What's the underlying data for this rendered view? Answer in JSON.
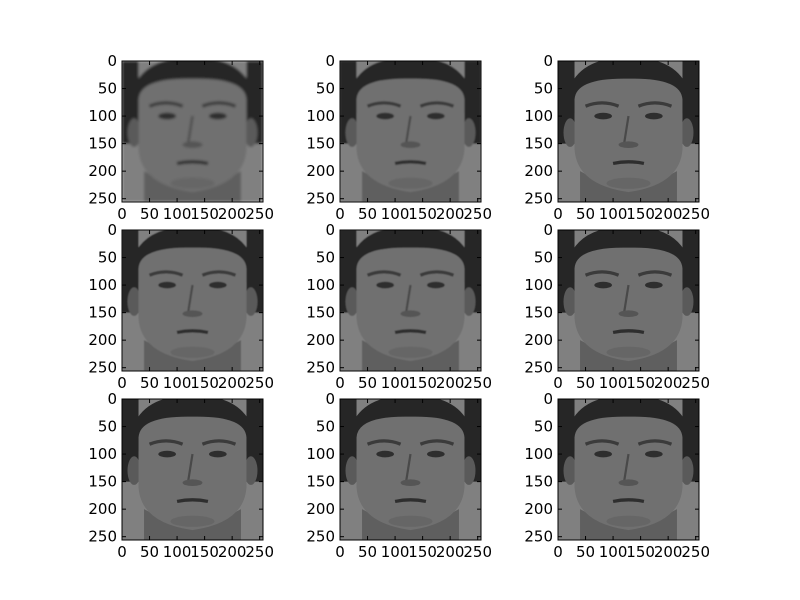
{
  "chart_data": {
    "type": "image_grid",
    "rows": 3,
    "cols": 3,
    "axis": {
      "xlim": [
        0,
        256
      ],
      "ylim": [
        256,
        0
      ],
      "xticks": [
        0,
        50,
        100,
        150,
        200,
        250
      ],
      "yticks": [
        0,
        50,
        100,
        150,
        200,
        250
      ]
    },
    "panels": [
      {
        "content": "grayscale face",
        "detail": "very coarse / blocky"
      },
      {
        "content": "grayscale face",
        "detail": "coarse"
      },
      {
        "content": "grayscale face",
        "detail": "fine"
      },
      {
        "content": "grayscale face",
        "detail": "medium"
      },
      {
        "content": "grayscale face",
        "detail": "medium"
      },
      {
        "content": "grayscale face",
        "detail": "fine"
      },
      {
        "content": "grayscale face",
        "detail": "fine"
      },
      {
        "content": "grayscale face",
        "detail": "fine"
      },
      {
        "content": "grayscale face",
        "detail": "fine"
      }
    ],
    "colors": {
      "background": "#8a8a8a",
      "face": "#6f6f6f",
      "hair": "#262626",
      "frame": "#000000"
    }
  }
}
